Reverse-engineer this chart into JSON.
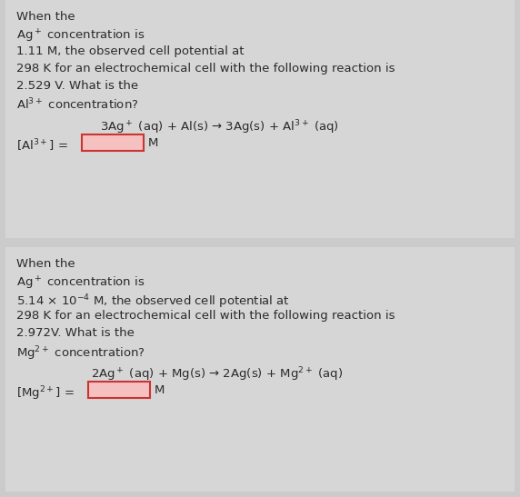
{
  "fig_w": 5.72,
  "fig_h": 5.47,
  "dpi": 100,
  "bg_color": "#cbcbcb",
  "panel1_bg": "#d6d6d6",
  "panel2_bg": "#d6d6d6",
  "text_color": "#2a2a2a",
  "box_border_color": "#cc3333",
  "box_fill_color": "#f5c0c0",
  "panel1_lines": [
    "When the",
    "Ag$^+$ concentration is",
    "1.11 M, the observed cell potential at",
    "298 K for an electrochemical cell with the following reaction is",
    "2.529 V. What is the",
    "Al$^{3+}$ concentration?"
  ],
  "panel1_equation": "3Ag$^+$ (aq) + Al(s) → 3Ag(s) + Al$^{3+}$ (aq)",
  "panel1_label": "[Al$^{3+}$] =",
  "panel1_unit": "M",
  "panel2_lines": [
    "When the",
    "Ag$^+$ concentration is",
    "5.14 × 10$^{-4}$ M, the observed cell potential at",
    "298 K for an electrochemical cell with the following reaction is",
    "2.972V. What is the",
    "Mg$^{2+}$ concentration?"
  ],
  "panel2_equation": "2Ag$^+$ (aq) + Mg(s) → 2Ag(s) + Mg$^{2+}$ (aq)",
  "panel2_label": "[Mg$^{2+}$] =",
  "panel2_unit": "M",
  "font_size": 9.5
}
